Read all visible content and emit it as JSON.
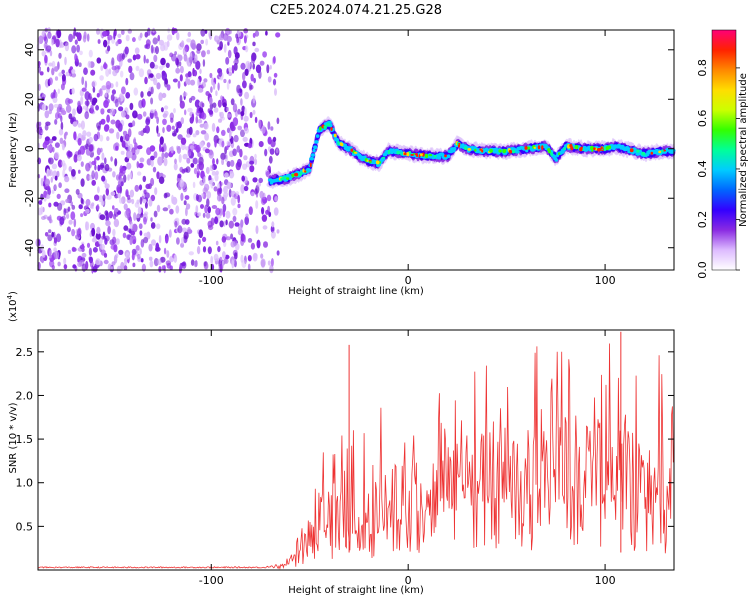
{
  "title": "C2E5.2024.074.21.25.G28",
  "chart_data": [
    {
      "type": "heatmap",
      "xlabel": "Height of straight line (km)",
      "ylabel": "Frequency (Hz)",
      "xlim": [
        -188,
        135
      ],
      "ylim": [
        -49,
        48
      ],
      "xticks": [
        -100,
        0,
        100
      ],
      "yticks": [
        -40,
        -20,
        0,
        20,
        40
      ],
      "colorbar": {
        "label": "Normalized spectral amplitude",
        "range": [
          0.0,
          0.95
        ],
        "ticks": [
          0.0,
          0.2,
          0.4,
          0.6,
          0.8
        ],
        "colors": [
          "#ffffff",
          "#ddbbff",
          "#8a2be2",
          "#3300ff",
          "#0066ff",
          "#00ccff",
          "#00ff99",
          "#33ff00",
          "#ccff00",
          "#ffdd00",
          "#ff8800",
          "#ff2200",
          "#ff0077"
        ]
      },
      "signal_track": {
        "x": [
          -70,
          -62,
          -55,
          -50,
          -45,
          -40,
          -35,
          -30,
          -25,
          -20,
          -15,
          -10,
          0,
          10,
          20,
          25,
          30,
          40,
          50,
          60,
          70,
          75,
          80,
          90,
          100,
          105,
          110,
          120,
          130,
          135
        ],
        "y": [
          -13,
          -12,
          -10,
          -8,
          8,
          10,
          2,
          0,
          -3,
          -5,
          -6,
          -1,
          -2,
          -3,
          -3,
          2,
          0,
          -1,
          -1,
          0,
          1,
          -4,
          1,
          0,
          0,
          1,
          0,
          -2,
          -1,
          -1
        ]
      },
      "noise_region_x": [
        -188,
        -70
      ]
    },
    {
      "type": "line",
      "xlabel": "Height of straight line (km)",
      "ylabel": "SNR (10 * v/v)",
      "y_multiplier": "(x10",
      "y_multiplier_exp": "4",
      "y_multiplier_close": ")",
      "xlim": [
        -188,
        135
      ],
      "ylim": [
        0,
        2.75
      ],
      "xticks": [
        -100,
        0,
        100
      ],
      "yticks": [
        0.5,
        1.0,
        1.5,
        2.0,
        2.5
      ],
      "ytick_labels": [
        "0.5",
        "1.0",
        "1.5",
        "2.0",
        "2.5"
      ],
      "series_color": "#ee3333",
      "envelope": {
        "x": [
          -188,
          -70,
          -60,
          -50,
          -40,
          -30,
          -20,
          -10,
          0,
          10,
          20,
          30,
          40,
          50,
          60,
          70,
          80,
          90,
          100,
          110,
          120,
          130,
          135
        ],
        "base": [
          0.03,
          0.03,
          0.05,
          0.25,
          0.35,
          0.35,
          0.4,
          0.45,
          0.55,
          0.6,
          0.65,
          0.7,
          0.75,
          0.75,
          0.75,
          0.7,
          0.75,
          0.7,
          0.75,
          0.7,
          0.65,
          0.6,
          0.55
        ],
        "peak": [
          0.05,
          0.06,
          0.15,
          0.9,
          1.6,
          1.9,
          1.8,
          1.9,
          1.9,
          2.0,
          2.2,
          2.4,
          2.5,
          2.55,
          2.6,
          2.55,
          2.65,
          2.6,
          2.6,
          2.7,
          2.6,
          2.5,
          2.4
        ]
      },
      "spikes": [
        {
          "x": -30,
          "y": 2.58
        },
        {
          "x": 108,
          "y": 2.73
        }
      ]
    }
  ]
}
